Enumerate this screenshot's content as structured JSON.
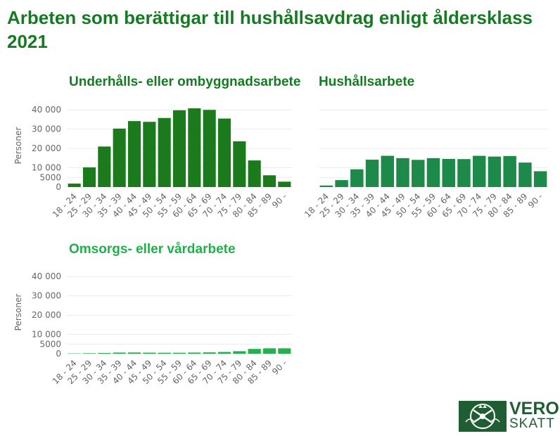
{
  "page": {
    "title": "Arbeten som berättigar till hushållsavdrag enligt åldersklass 2021"
  },
  "logo": {
    "line1": "VERO",
    "line2": "SKATT",
    "icon": "vero-skatt-emblem-icon",
    "color": "#1f5e33"
  },
  "chart_data": [
    {
      "type": "bar",
      "title": "Underhålls- eller ombyggnadsarbete",
      "ylabel": "Personer",
      "color": "#1b7a1b",
      "title_color": "#157a22",
      "ylim": [
        0,
        43000
      ],
      "yticks": [
        0,
        5000,
        10000,
        20000,
        30000,
        40000
      ],
      "ytick_labels": [
        "0",
        "5000",
        "10 000",
        "20 000",
        "30 000",
        "40 000"
      ],
      "categories": [
        "18 - 24",
        "25 - 29",
        "30 - 34",
        "35 - 39",
        "40 - 44",
        "45 - 49",
        "50 - 54",
        "55 - 59",
        "60 - 64",
        "65 - 69",
        "70 - 74",
        "75 - 79",
        "80 - 84",
        "85 - 89",
        "90 -"
      ],
      "values": [
        1800,
        10200,
        21000,
        30300,
        34200,
        33800,
        35800,
        39800,
        40800,
        40000,
        35500,
        23700,
        13800,
        6100,
        2800
      ]
    },
    {
      "type": "bar",
      "title": "Hushållsarbete",
      "ylabel": "",
      "color": "#1e8a4a",
      "title_color": "#157a22",
      "ylim": [
        0,
        43000
      ],
      "yticks": [
        0,
        5000,
        10000,
        20000,
        30000,
        40000
      ],
      "ytick_labels": [],
      "categories": [
        "18 - 24",
        "25 - 29",
        "30 - 34",
        "35 - 39",
        "40 - 44",
        "45 - 49",
        "50 - 54",
        "55 - 59",
        "60 - 64",
        "65 - 69",
        "70 - 74",
        "75 - 79",
        "80 - 84",
        "85 - 89",
        "90 -"
      ],
      "values": [
        800,
        3600,
        9200,
        14200,
        16200,
        15000,
        14100,
        15000,
        14600,
        14500,
        16200,
        15800,
        16100,
        12700,
        8200
      ]
    },
    {
      "type": "bar",
      "title": "Omsorgs- eller vårdarbete",
      "ylabel": "Personer",
      "color": "#22b14c",
      "title_color": "#20b04a",
      "ylim": [
        0,
        43000
      ],
      "yticks": [
        0,
        5000,
        10000,
        20000,
        30000,
        40000
      ],
      "ytick_labels": [
        "0",
        "5000",
        "10 000",
        "20 000",
        "30 000",
        "40 000"
      ],
      "categories": [
        "18 - 24",
        "25 - 29",
        "30 - 34",
        "35 - 39",
        "40 - 44",
        "45 - 49",
        "50 - 54",
        "55 - 59",
        "60 - 64",
        "65 - 69",
        "70 - 74",
        "75 - 79",
        "80 - 84",
        "85 - 89",
        "90 -"
      ],
      "values": [
        150,
        250,
        400,
        600,
        650,
        550,
        500,
        500,
        600,
        700,
        900,
        1300,
        2500,
        2800,
        2800
      ]
    }
  ]
}
